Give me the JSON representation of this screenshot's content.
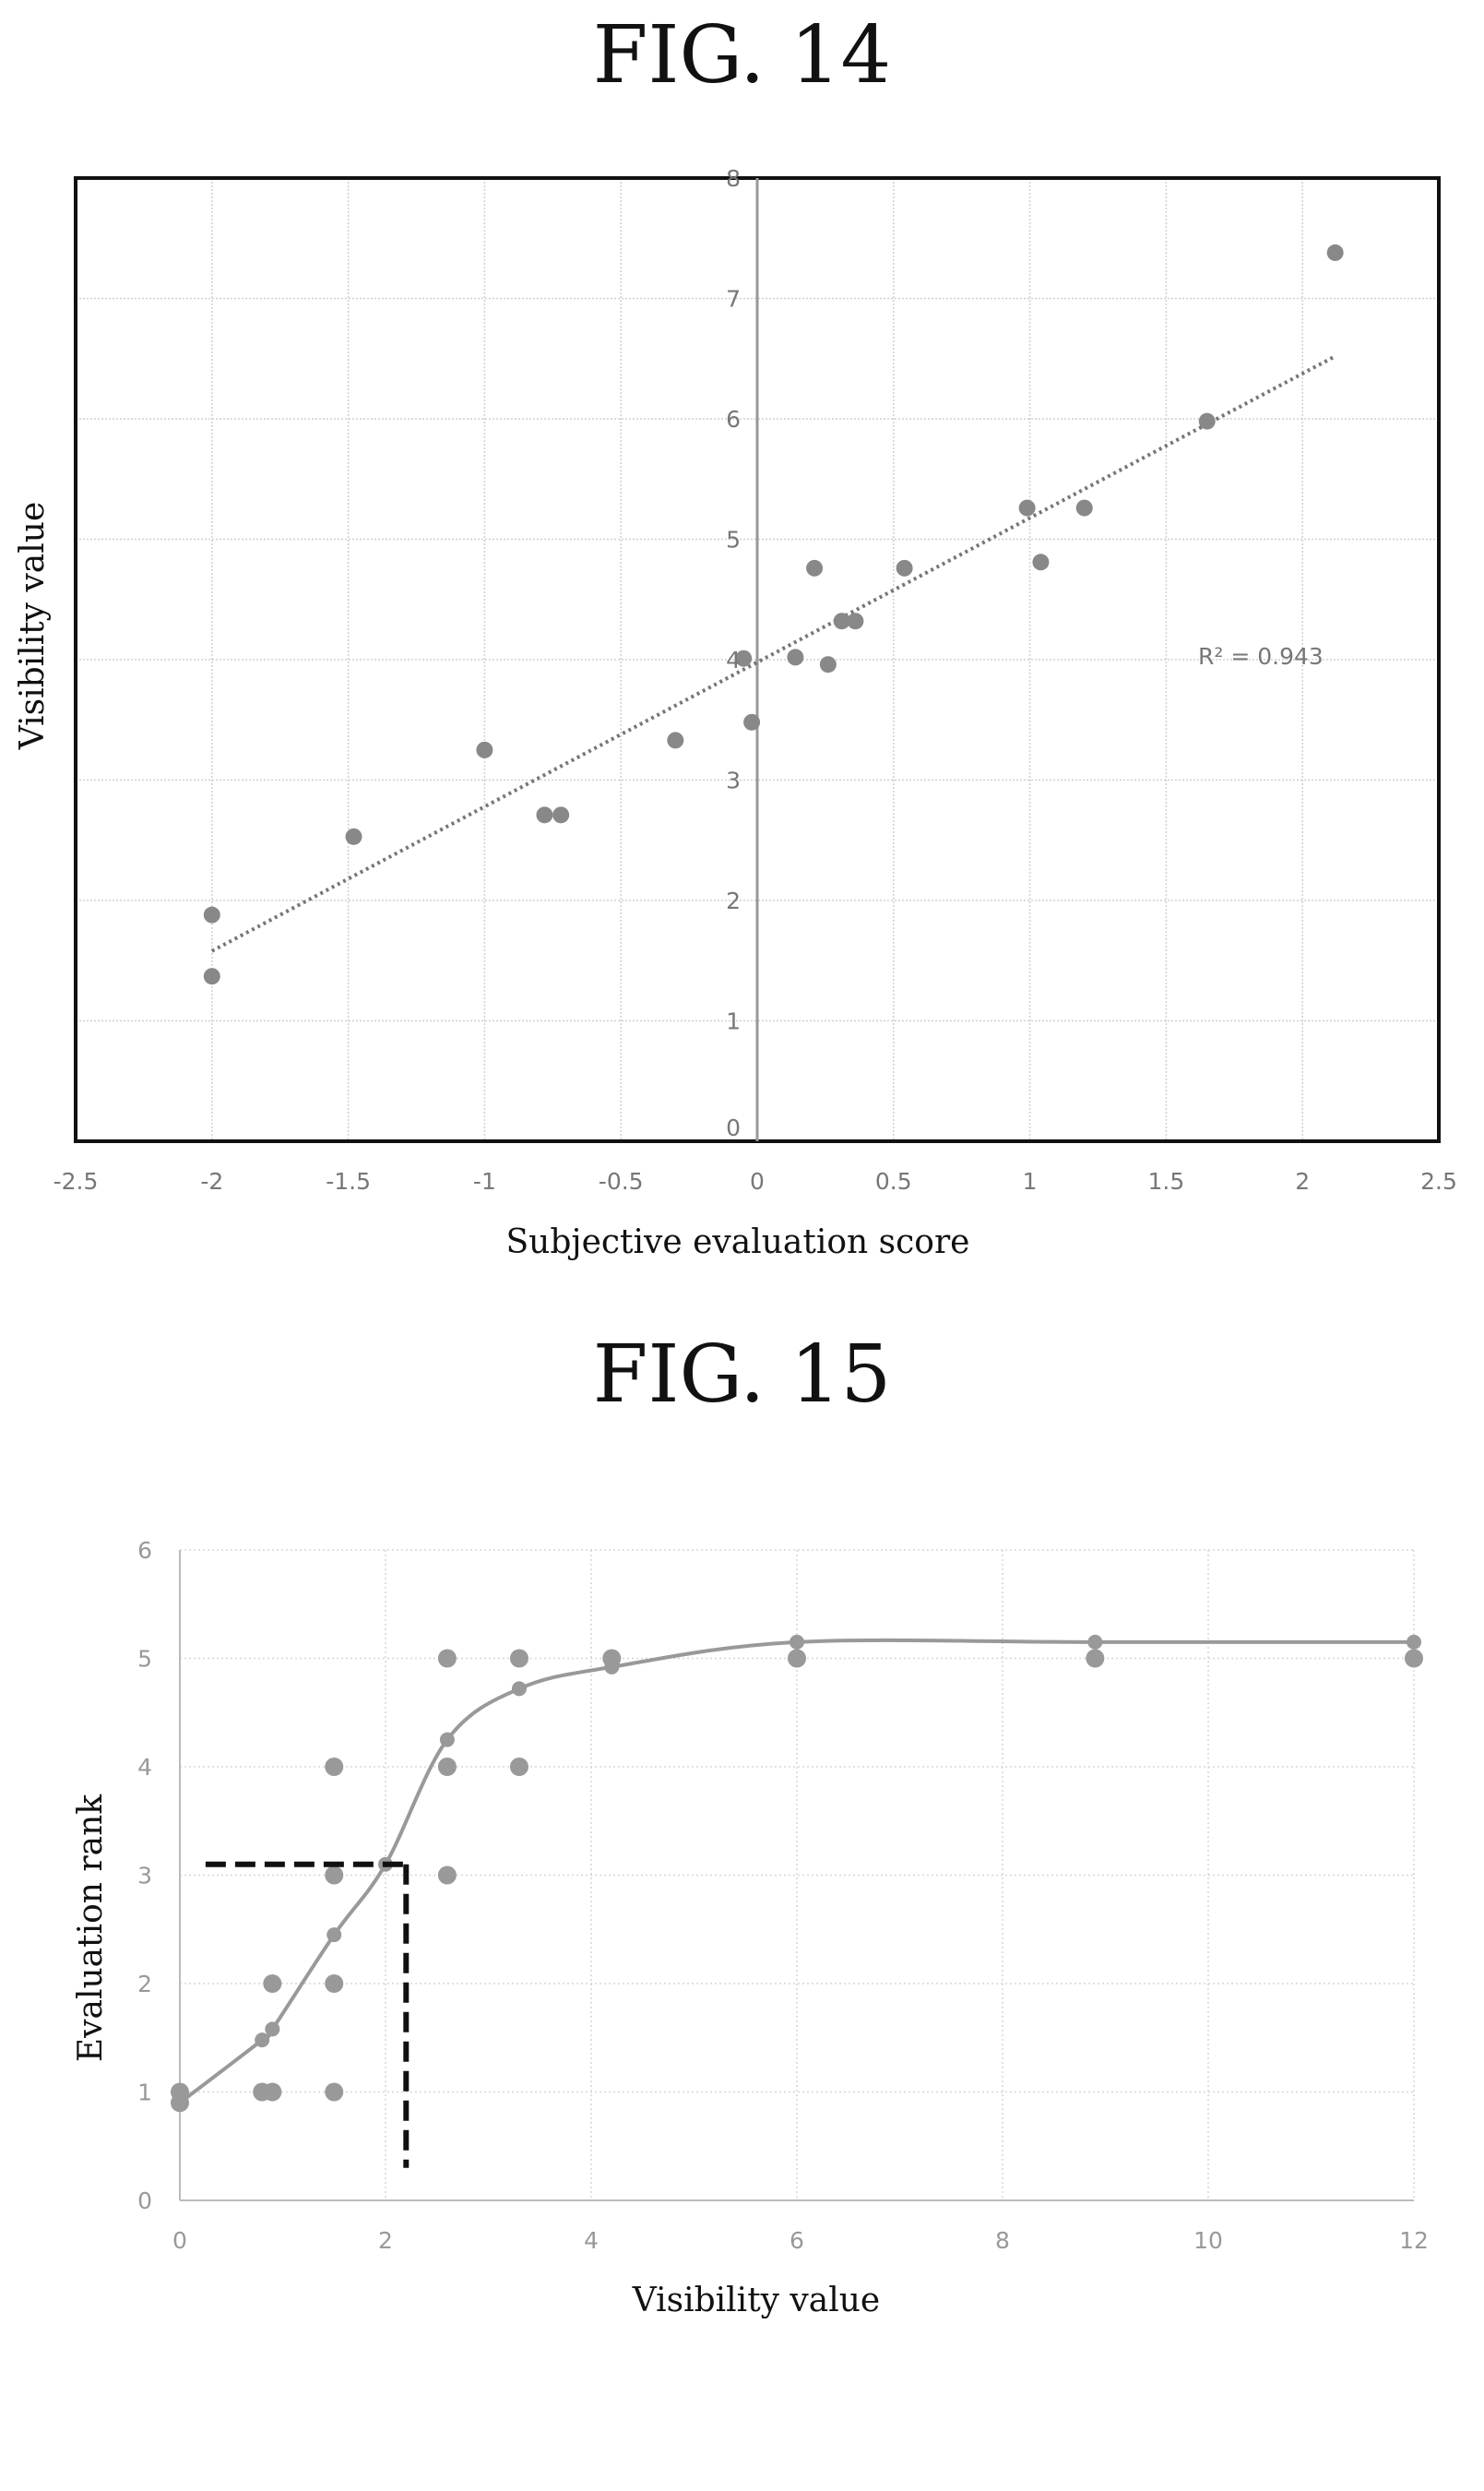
{
  "figures": [
    {
      "title": "FIG. 14",
      "chart_data": {
        "type": "scatter",
        "xlabel": "Subjective evaluation score",
        "ylabel": "Visibility value",
        "xlim": [
          -2.5,
          2.5
        ],
        "ylim": [
          0,
          8
        ],
        "x_ticks": [
          "-2.5",
          "-2",
          "-1.5",
          "-1",
          "-0.5",
          "0",
          "0.5",
          "1",
          "1.5",
          "2",
          "2.5"
        ],
        "y_ticks": [
          "0",
          "1",
          "2",
          "3",
          "4",
          "5",
          "6",
          "7",
          "8"
        ],
        "grid": true,
        "points": [
          {
            "x": -2.0,
            "y": 1.88
          },
          {
            "x": -2.0,
            "y": 1.37
          },
          {
            "x": -1.48,
            "y": 2.53
          },
          {
            "x": -1.0,
            "y": 3.25
          },
          {
            "x": -0.78,
            "y": 2.71
          },
          {
            "x": -0.72,
            "y": 2.71
          },
          {
            "x": -0.3,
            "y": 3.33
          },
          {
            "x": -0.05,
            "y": 4.01
          },
          {
            "x": -0.02,
            "y": 3.48
          },
          {
            "x": 0.14,
            "y": 4.02
          },
          {
            "x": 0.21,
            "y": 4.76
          },
          {
            "x": 0.26,
            "y": 3.96
          },
          {
            "x": 0.31,
            "y": 4.32
          },
          {
            "x": 0.36,
            "y": 4.32
          },
          {
            "x": 0.54,
            "y": 4.76
          },
          {
            "x": 0.99,
            "y": 5.26
          },
          {
            "x": 1.04,
            "y": 4.81
          },
          {
            "x": 1.2,
            "y": 5.26
          },
          {
            "x": 1.65,
            "y": 5.98
          },
          {
            "x": 2.12,
            "y": 7.38
          }
        ],
        "trendline": {
          "style": "dotted",
          "x": [
            -2.0,
            2.12
          ],
          "y": [
            1.58,
            6.52
          ]
        },
        "annotation": "R² = 0.943"
      }
    },
    {
      "title": "FIG. 15",
      "chart_data": {
        "type": "scatter",
        "xlabel": "Visibility value",
        "ylabel": "Evaluation rank",
        "xlim": [
          0,
          12
        ],
        "ylim": [
          0,
          6
        ],
        "x_ticks": [
          "0",
          "2",
          "4",
          "6",
          "8",
          "10",
          "12"
        ],
        "y_ticks": [
          "0",
          "1",
          "2",
          "3",
          "4",
          "5",
          "6"
        ],
        "grid": true,
        "points": [
          {
            "x": 0.0,
            "y": 1
          },
          {
            "x": 0.0,
            "y": 0.9
          },
          {
            "x": 0.8,
            "y": 1
          },
          {
            "x": 0.9,
            "y": 1
          },
          {
            "x": 0.9,
            "y": 2
          },
          {
            "x": 1.5,
            "y": 1
          },
          {
            "x": 1.5,
            "y": 2
          },
          {
            "x": 1.5,
            "y": 3
          },
          {
            "x": 1.5,
            "y": 4
          },
          {
            "x": 2.6,
            "y": 3
          },
          {
            "x": 2.6,
            "y": 4
          },
          {
            "x": 2.6,
            "y": 5
          },
          {
            "x": 3.3,
            "y": 4
          },
          {
            "x": 3.3,
            "y": 5
          },
          {
            "x": 4.2,
            "y": 5
          },
          {
            "x": 6.0,
            "y": 5
          },
          {
            "x": 8.9,
            "y": 5
          },
          {
            "x": 12.0,
            "y": 5
          }
        ],
        "fit_curve": {
          "style": "solid",
          "x": [
            0.0,
            0.8,
            0.9,
            1.5,
            2.0,
            2.6,
            3.3,
            4.2,
            6.0,
            8.9,
            12.0
          ],
          "y": [
            0.9,
            1.48,
            1.58,
            2.45,
            3.1,
            4.25,
            4.72,
            4.92,
            5.15,
            5.15,
            5.15
          ]
        },
        "threshold_guide": {
          "style": "dashed",
          "x": 2.2,
          "y": 3.1,
          "x_start": 0.25,
          "y_end": 0.3
        }
      }
    }
  ]
}
